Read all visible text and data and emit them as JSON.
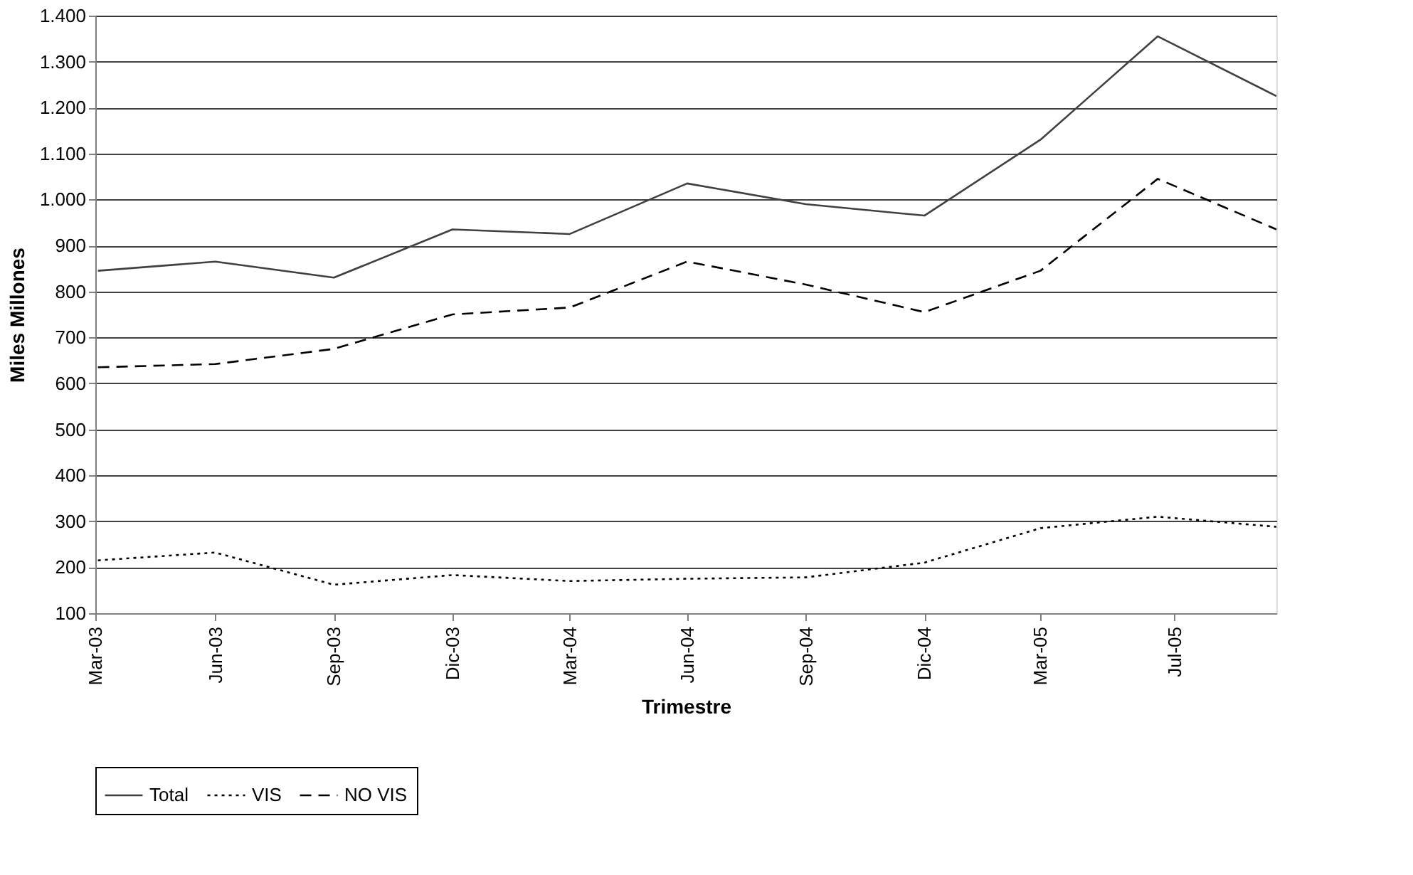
{
  "chart_data": {
    "type": "line",
    "xlabel": "Trimestre",
    "ylabel": "Miles Millones",
    "x": [
      "2003-03-31",
      "2003-06-30",
      "2003-09-30",
      "2003-12-31",
      "2004-03-31",
      "2004-06-30",
      "2004-09-30",
      "2004-12-31",
      "2005-03-31",
      "2005-06-30",
      "2005-09-30"
    ],
    "series": [
      {
        "name": "Total",
        "color": "#404040",
        "line_style": "solid",
        "values": [
          845,
          865,
          830,
          935,
          925,
          1035,
          990,
          965,
          1130,
          1355,
          1225
        ]
      },
      {
        "name": "VIS",
        "color": "#000000",
        "line_style": "dotted",
        "values": [
          215,
          232,
          162,
          183,
          170,
          175,
          178,
          210,
          285,
          310,
          288
        ]
      },
      {
        "name": "NO VIS",
        "color": "#000000",
        "line_style": "dashed",
        "values": [
          635,
          642,
          675,
          750,
          765,
          865,
          815,
          755,
          845,
          1045,
          935
        ]
      }
    ],
    "xlim": [
      "2003-03-29",
      "2005-09-30"
    ],
    "xticks": [
      {
        "value": "2003-03-29",
        "label": "Mar-03"
      },
      {
        "value": "2003-06-30",
        "label": "Jun-03"
      },
      {
        "value": "2003-09-30",
        "label": "Sep-03"
      },
      {
        "value": "2003-12-31",
        "label": "Dic-03"
      },
      {
        "value": "2004-03-31",
        "label": "Mar-04"
      },
      {
        "value": "2004-06-30",
        "label": "Jun-04"
      },
      {
        "value": "2004-09-30",
        "label": "Sep-04"
      },
      {
        "value": "2004-12-31",
        "label": "Dic-04"
      },
      {
        "value": "2005-03-31",
        "label": "Mar-05"
      },
      {
        "value": "2005-07-13",
        "label": "Jul-05"
      }
    ],
    "ylim": [
      100,
      1400
    ],
    "yticks": [
      100,
      200,
      300,
      400,
      500,
      600,
      700,
      800,
      900,
      {
        "value": 1000,
        "label": "1.000"
      },
      {
        "value": 1100,
        "label": "1.100"
      },
      {
        "value": 1200,
        "label": "1.200"
      },
      {
        "value": 1300,
        "label": "1.300"
      },
      {
        "value": 1400,
        "label": "1.400"
      }
    ],
    "grid": "y",
    "legend": "bottom",
    "marker": "none"
  }
}
